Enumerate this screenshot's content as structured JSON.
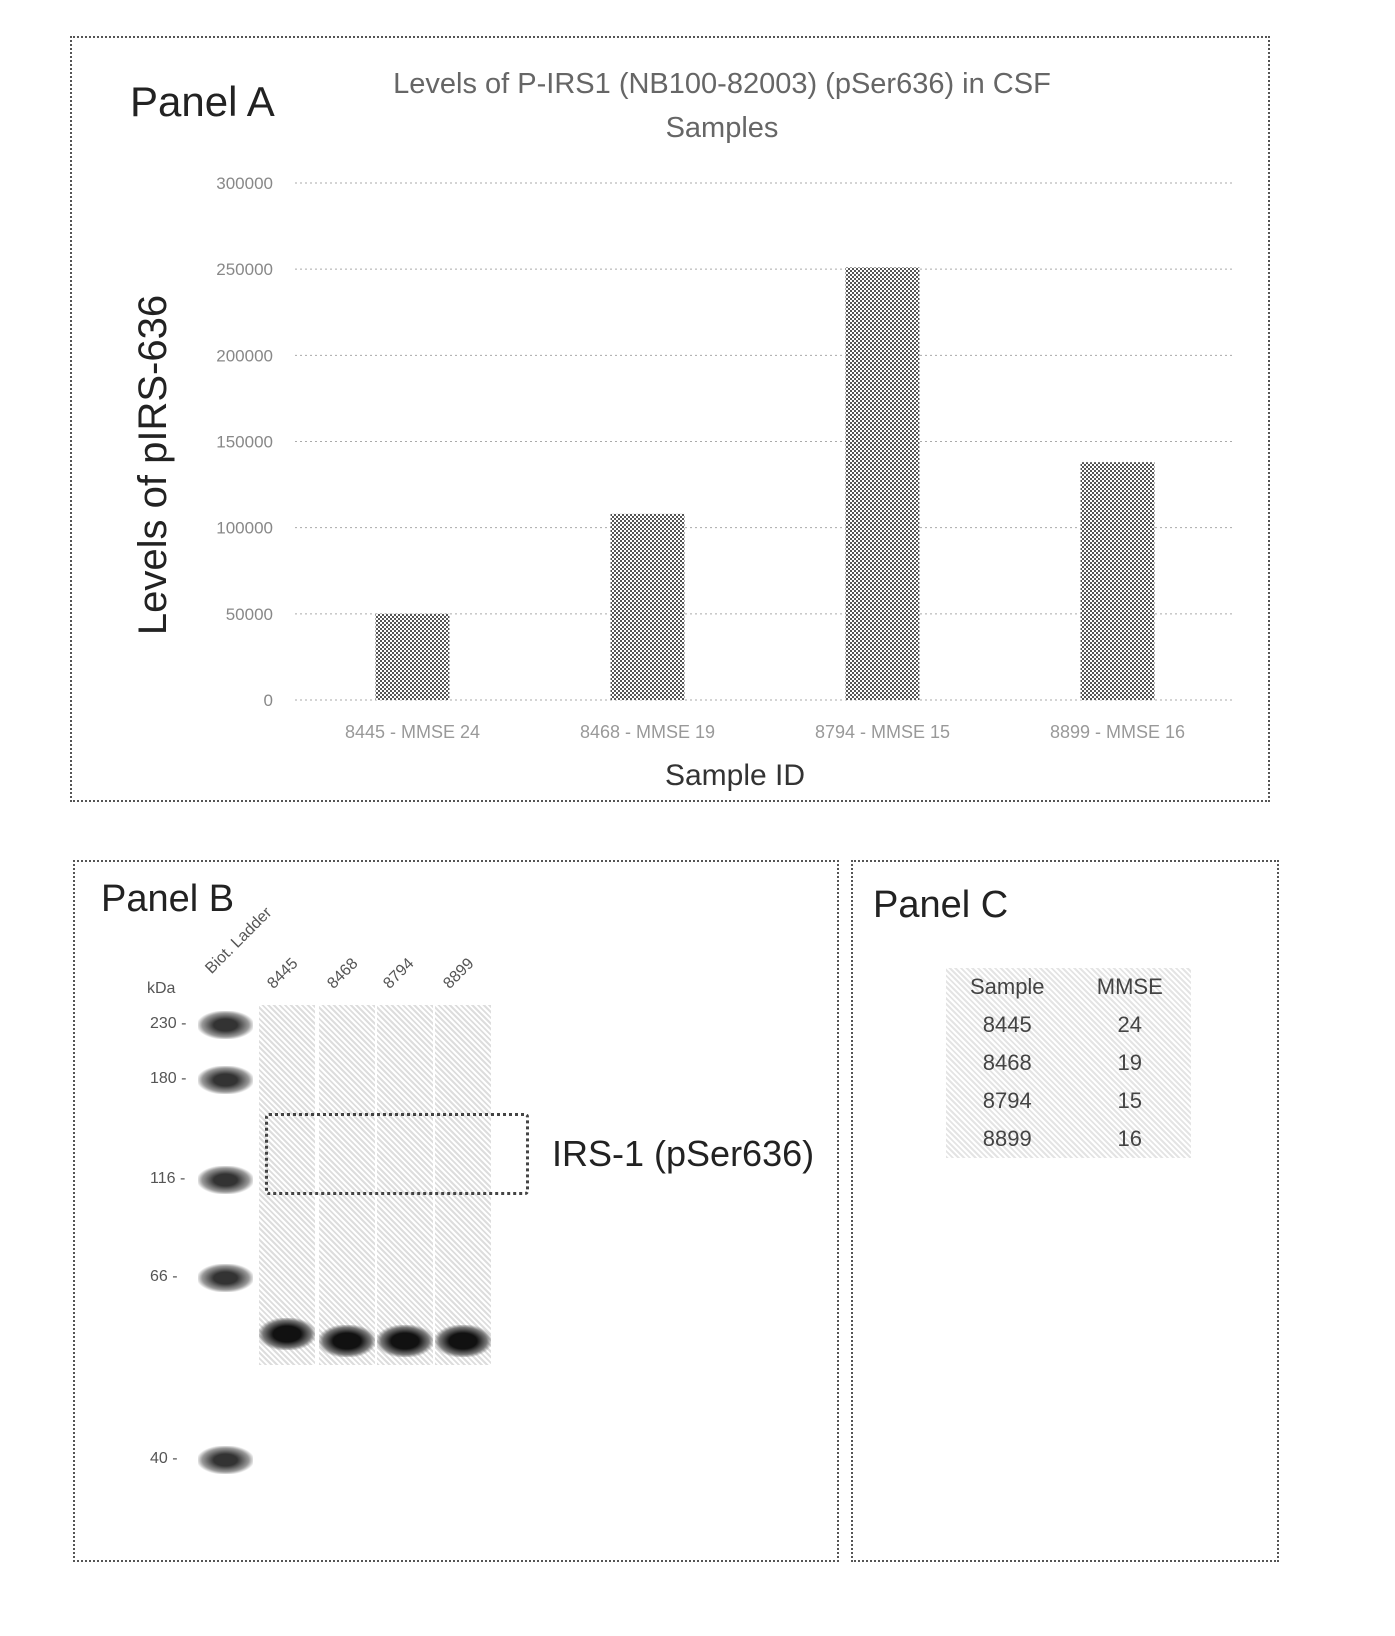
{
  "panel_a": {
    "label": "Panel A"
  },
  "panel_b": {
    "label": "Panel B",
    "kda_label": "kDa",
    "lane_labels": [
      "Biot. Ladder",
      "8445",
      "8468",
      "8794",
      "8899"
    ],
    "markers": [
      "230",
      "180",
      "116",
      "66",
      "40"
    ],
    "box_label": "IRS-1 (pSer636)"
  },
  "panel_c": {
    "label": "Panel C",
    "headers": [
      "Sample",
      "MMSE"
    ],
    "rows": [
      [
        "8445",
        "24"
      ],
      [
        "8468",
        "19"
      ],
      [
        "8794",
        "15"
      ],
      [
        "8899",
        "16"
      ]
    ]
  },
  "chart_data": {
    "type": "bar",
    "title": "Levels of P-IRS1 (NB100-82003) (pSer636) in CSF Samples",
    "xlabel": "Sample ID",
    "ylabel": "Levels of pIRS-636",
    "categories": [
      "8445 - MMSE 24",
      "8468 - MMSE 19",
      "8794 - MMSE 15",
      "8899 - MMSE 16"
    ],
    "values": [
      50000,
      108000,
      251000,
      138000
    ],
    "ylim": [
      0,
      300000
    ],
    "yticks": [
      "0",
      "50000",
      "100000",
      "150000",
      "200000",
      "250000",
      "300000"
    ],
    "grid": true,
    "bar_color": "#555555"
  }
}
